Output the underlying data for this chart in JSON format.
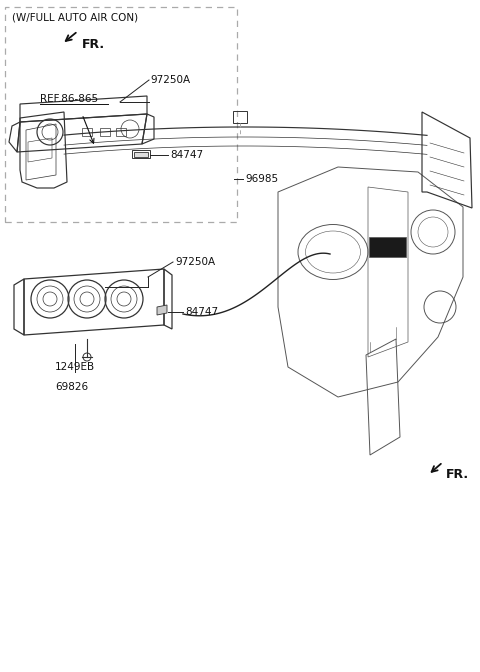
{
  "bg_color": "#ffffff",
  "line_color": "#222222",
  "text_color": "#111111",
  "sections": {
    "top_label": "(W/FULL AUTO AIR CON)",
    "part1_label": "97250A",
    "part2_label": "84747",
    "part3_label": "97250A",
    "part4_label": "84747",
    "part5_line1": "1249EB",
    "part5_line2": "69826",
    "part6_label": "96985",
    "ref_label": "REF.86-865",
    "fr_label": "FR."
  },
  "font_size_label": 7.5,
  "font_size_fr": 9.0
}
